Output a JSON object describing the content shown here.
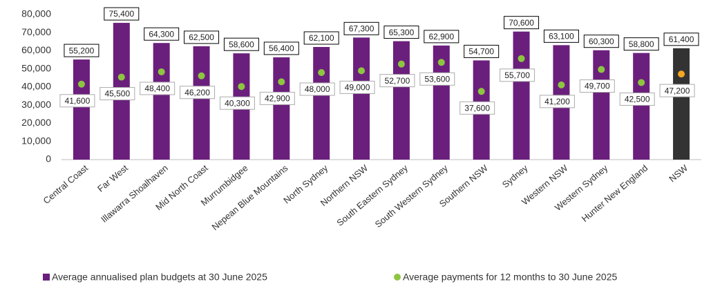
{
  "chart_data": {
    "type": "bar",
    "categories": [
      "Central Coast",
      "Far West",
      "Illawarra Shoalhaven",
      "Mid North Coast",
      "Murrumbidgee",
      "Nepean Blue Mountains",
      "North Sydney",
      "Northern NSW",
      "South Eastern Sydney",
      "South Western Sydney",
      "Southern NSW",
      "Sydney",
      "Western NSW",
      "Western Sydney",
      "Hunter New England",
      "NSW"
    ],
    "series": [
      {
        "name": "Average annualised plan budgets at 30 June 2025",
        "type": "bar",
        "color": "#6b1f7c",
        "colors": [
          "#6b1f7c",
          "#6b1f7c",
          "#6b1f7c",
          "#6b1f7c",
          "#6b1f7c",
          "#6b1f7c",
          "#6b1f7c",
          "#6b1f7c",
          "#6b1f7c",
          "#6b1f7c",
          "#6b1f7c",
          "#6b1f7c",
          "#6b1f7c",
          "#6b1f7c",
          "#6b1f7c",
          "#333333"
        ],
        "values": [
          55200,
          75400,
          64300,
          62500,
          58600,
          56400,
          62100,
          67300,
          65300,
          62900,
          54700,
          70600,
          63100,
          60300,
          58800,
          61400
        ],
        "value_labels": [
          "55,200",
          "75,400",
          "64,300",
          "62,500",
          "58,600",
          "56,400",
          "62,100",
          "67,300",
          "65,300",
          "62,900",
          "54,700",
          "70,600",
          "63,100",
          "60,300",
          "58,800",
          "61,400"
        ]
      },
      {
        "name": "Average payments for 12 months to 30 June 2025",
        "type": "dot",
        "color": "#8cc63f",
        "colors": [
          "#8cc63f",
          "#8cc63f",
          "#8cc63f",
          "#8cc63f",
          "#8cc63f",
          "#8cc63f",
          "#8cc63f",
          "#8cc63f",
          "#8cc63f",
          "#8cc63f",
          "#8cc63f",
          "#8cc63f",
          "#8cc63f",
          "#8cc63f",
          "#8cc63f",
          "#f5a623"
        ],
        "values": [
          41600,
          45500,
          48400,
          46200,
          40300,
          42900,
          48000,
          49000,
          52700,
          53600,
          37600,
          55700,
          41200,
          49700,
          42500,
          47200
        ],
        "value_labels": [
          "41,600",
          "45,500",
          "48,400",
          "46,200",
          "40,300",
          "42,900",
          "48,000",
          "49,000",
          "52,700",
          "53,600",
          "37,600",
          "55,700",
          "41,200",
          "49,700",
          "42,500",
          "47,200"
        ]
      }
    ],
    "ylim": [
      0,
      80000
    ],
    "yticks": [
      0,
      {
        "value": 10000,
        "label": "10,000"
      },
      {
        "value": 20000,
        "label": "20,000"
      },
      {
        "value": 30000,
        "label": "30,000"
      },
      {
        "value": 40000,
        "label": "40,000"
      },
      {
        "value": 50000,
        "label": "50,000"
      },
      {
        "value": 60000,
        "label": "60,000"
      },
      {
        "value": 70000,
        "label": "70,000"
      },
      {
        "value": 80000,
        "label": "80,000"
      }
    ],
    "grid": false,
    "legend": "bottom"
  }
}
